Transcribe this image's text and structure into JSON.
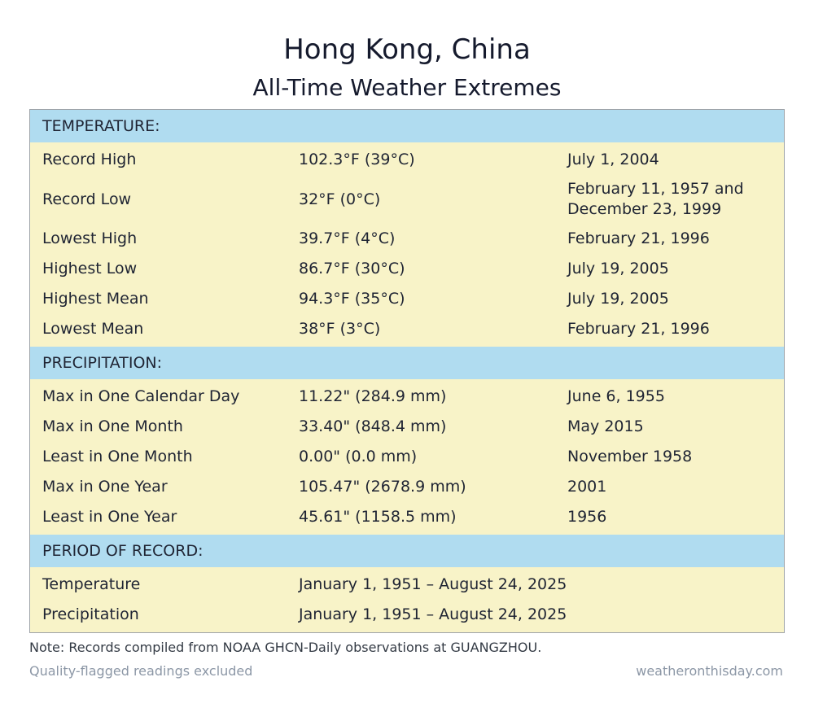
{
  "header": {
    "title": "Hong Kong, China",
    "subtitle": "All-Time Weather Extremes"
  },
  "temperature": {
    "heading": "TEMPERATURE:",
    "rows": [
      {
        "label": "Record High",
        "value": "102.3°F (39°C)",
        "date": "July 1, 2004"
      },
      {
        "label": "Record Low",
        "value": "32°F (0°C)",
        "date": "February 11, 1957 and December 23, 1999"
      },
      {
        "label": "Lowest High",
        "value": "39.7°F (4°C)",
        "date": "February 21, 1996"
      },
      {
        "label": "Highest Low",
        "value": "86.7°F (30°C)",
        "date": "July 19, 2005"
      },
      {
        "label": "Highest Mean",
        "value": "94.3°F (35°C)",
        "date": "July 19, 2005"
      },
      {
        "label": "Lowest Mean",
        "value": "38°F (3°C)",
        "date": "February 21, 1996"
      }
    ]
  },
  "precipitation": {
    "heading": "PRECIPITATION:",
    "rows": [
      {
        "label": "Max in One Calendar Day",
        "value": "11.22\" (284.9 mm)",
        "date": "June 6, 1955"
      },
      {
        "label": "Max in One Month",
        "value": "33.40\" (848.4 mm)",
        "date": "May 2015"
      },
      {
        "label": "Least in One Month",
        "value": "0.00\" (0.0 mm)",
        "date": "November 1958"
      },
      {
        "label": "Max in One Year",
        "value": "105.47\" (2678.9 mm)",
        "date": "2001"
      },
      {
        "label": "Least in One Year",
        "value": "45.61\" (1158.5 mm)",
        "date": "1956"
      }
    ]
  },
  "period": {
    "heading": "PERIOD OF RECORD:",
    "rows": [
      {
        "label": "Temperature",
        "value": "January 1, 1951 – August 24, 2025"
      },
      {
        "label": "Precipitation",
        "value": "January 1, 1951 – August 24, 2025"
      }
    ]
  },
  "footer": {
    "note": "Note: Records compiled from NOAA GHCN-Daily observations at GUANGZHOU.",
    "flag_note": "Quality-flagged readings excluded",
    "site": "weatheronthisday.com"
  }
}
